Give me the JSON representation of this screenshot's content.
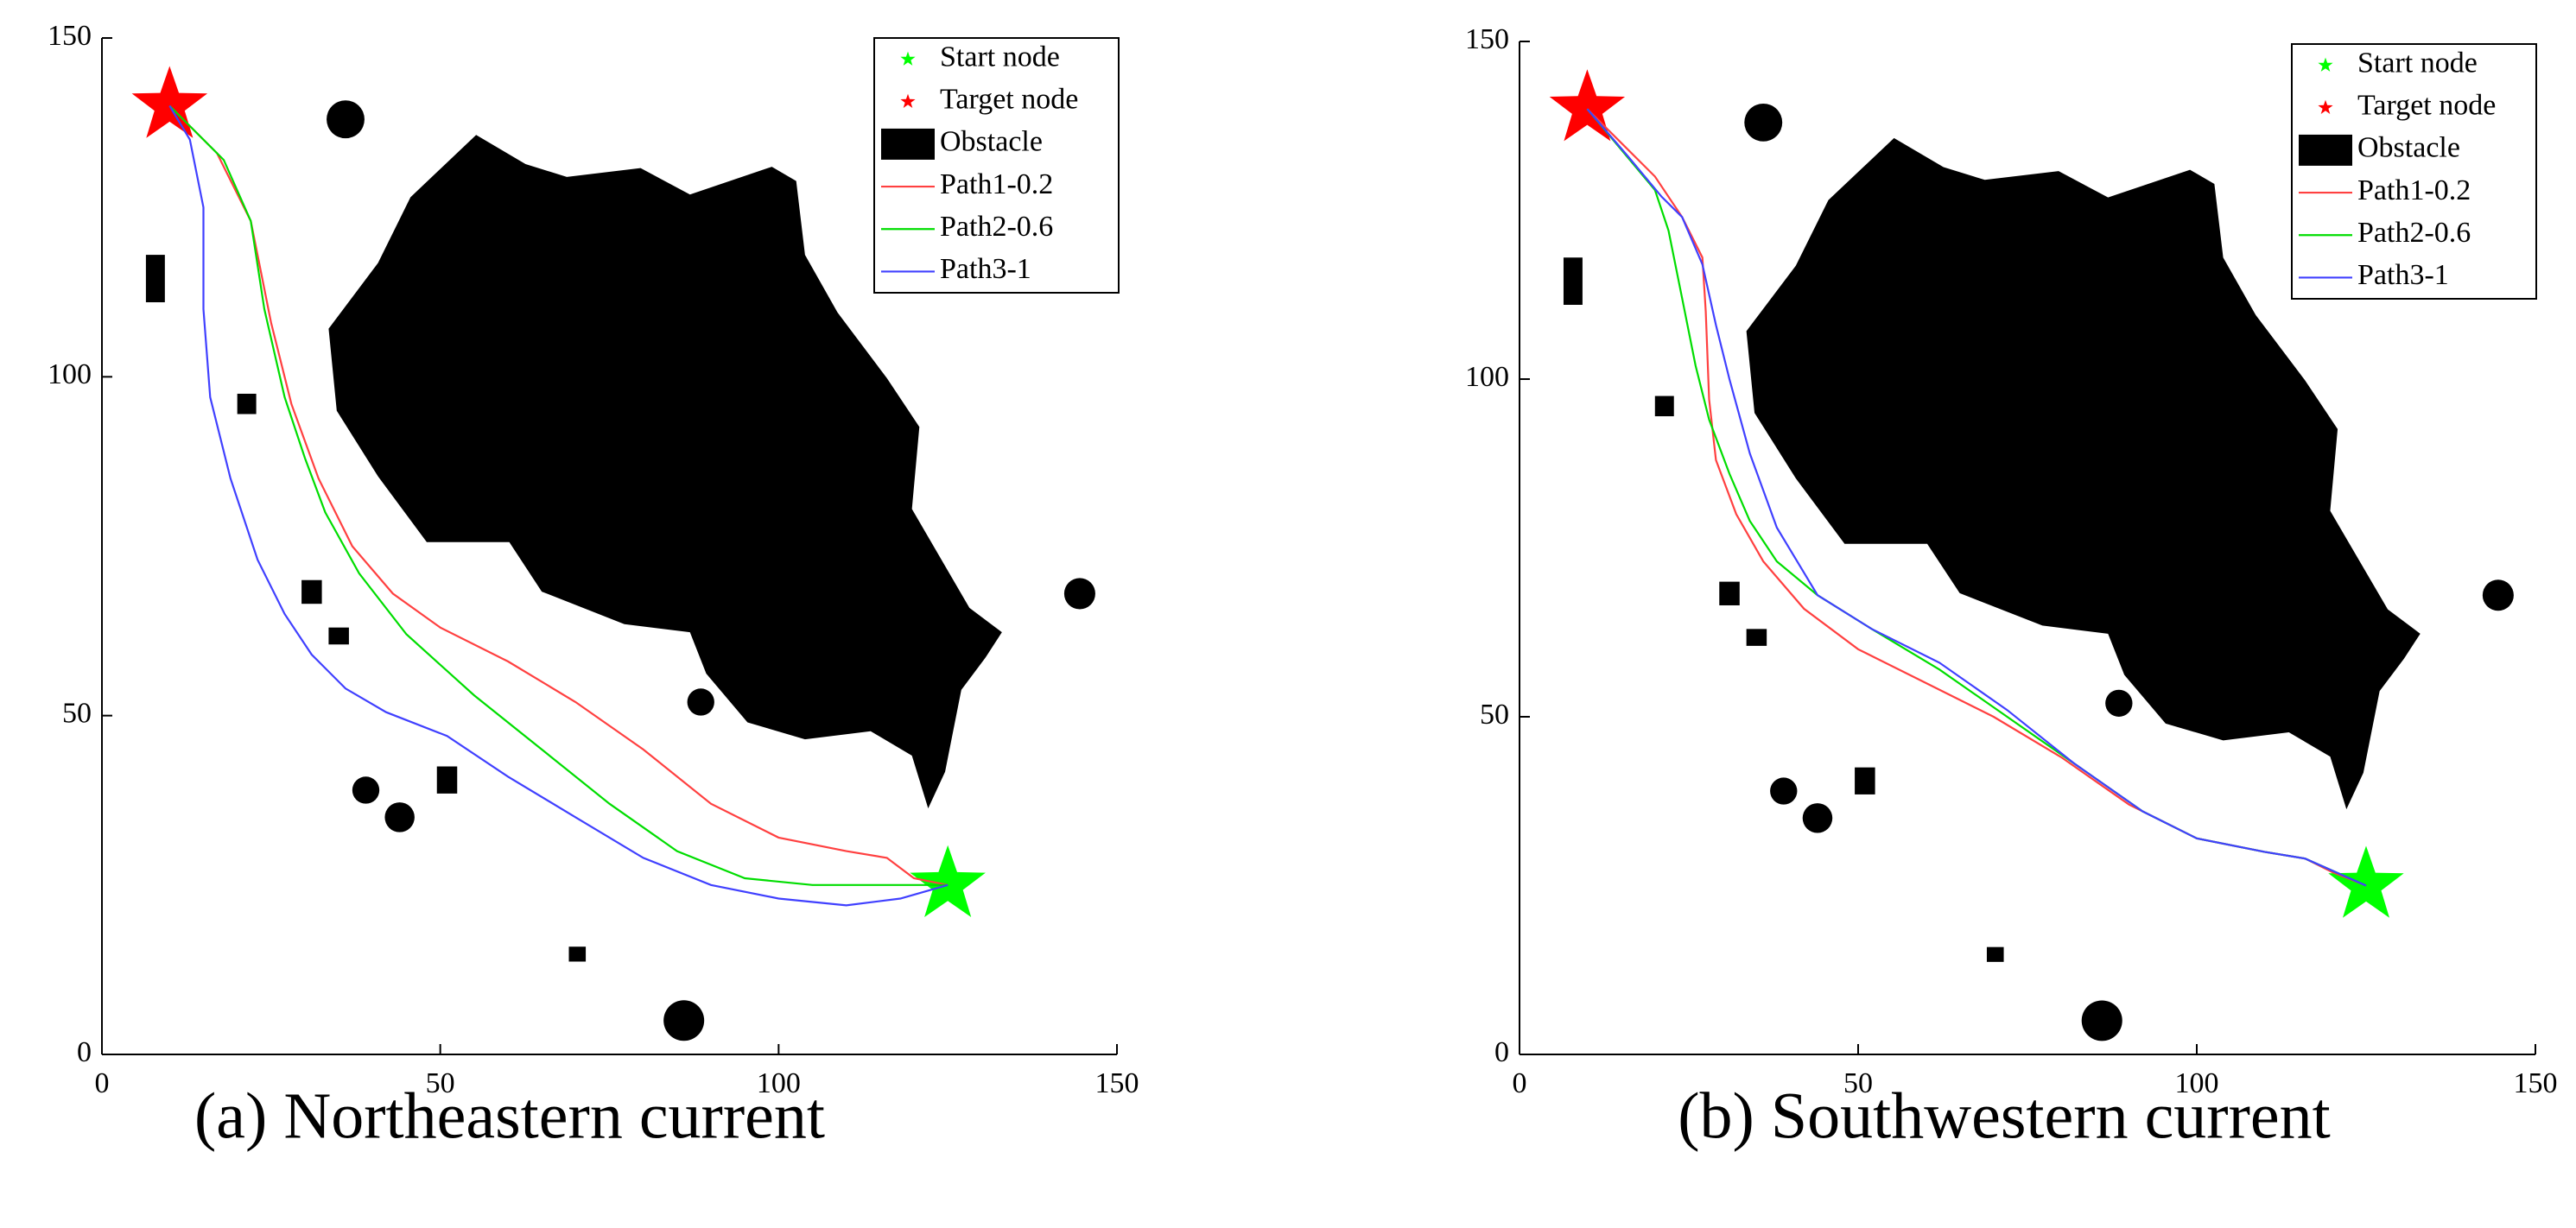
{
  "chart_data": [
    {
      "type": "line",
      "caption": "(a) Northeastern current",
      "xlim": [
        0,
        150
      ],
      "ylim": [
        0,
        150
      ],
      "xticks": [
        0,
        50,
        100,
        150
      ],
      "yticks": [
        0,
        50,
        100,
        150
      ],
      "legend_position": "upper right",
      "obstacle": {
        "name": "Obstacle",
        "color": "#000000"
      },
      "series": [
        {
          "name": "Start node",
          "color": "#00ff00",
          "marker": "star",
          "x": [
            125
          ],
          "values": [
            25
          ]
        },
        {
          "name": "Target node",
          "color": "#ff0000",
          "marker": "star",
          "x": [
            10
          ],
          "values": [
            140
          ]
        },
        {
          "name": "Path1-0.2",
          "color": "#ff4040",
          "x": [
            10,
            13,
            17,
            22,
            25,
            28,
            32,
            37,
            43,
            50,
            60,
            70,
            80,
            90,
            100,
            110,
            116,
            120,
            125
          ],
          "values": [
            140,
            137,
            133,
            123,
            108,
            96,
            85,
            75,
            68,
            63,
            58,
            52,
            45,
            37,
            32,
            30,
            29,
            26,
            25
          ]
        },
        {
          "name": "Path2-0.6",
          "color": "#00dd00",
          "x": [
            10,
            13,
            18,
            22,
            24,
            27,
            30,
            33,
            38,
            45,
            55,
            65,
            75,
            85,
            95,
            105,
            115,
            125
          ],
          "values": [
            140,
            137,
            132,
            123,
            110,
            97,
            88,
            80,
            71,
            62,
            53,
            45,
            37,
            30,
            26,
            25,
            25,
            25
          ]
        },
        {
          "name": "Path3-1",
          "color": "#4040ff",
          "x": [
            10,
            13,
            15,
            15,
            16,
            19,
            23,
            27,
            31,
            36,
            42,
            51,
            60,
            70,
            80,
            90,
            100,
            110,
            118,
            125
          ],
          "values": [
            140,
            135,
            125,
            110,
            97,
            85,
            73,
            65,
            59,
            54,
            50.5,
            47,
            41,
            35,
            29,
            25,
            23,
            22,
            23,
            25
          ]
        }
      ]
    },
    {
      "type": "line",
      "caption": "(b) Southwestern current",
      "xlim": [
        0,
        150
      ],
      "ylim": [
        0,
        150
      ],
      "xticks": [
        0,
        50,
        100,
        150
      ],
      "yticks": [
        0,
        50,
        100,
        150
      ],
      "legend_position": "upper right",
      "obstacle": {
        "name": "Obstacle",
        "color": "#000000"
      },
      "series": [
        {
          "name": "Start node",
          "color": "#00ff00",
          "marker": "star",
          "x": [
            125
          ],
          "values": [
            25
          ]
        },
        {
          "name": "Target node",
          "color": "#ff0000",
          "marker": "star",
          "x": [
            10
          ],
          "values": [
            140
          ]
        },
        {
          "name": "Path1-0.2",
          "color": "#ff4040",
          "x": [
            10,
            15,
            20,
            24,
            27,
            27.5,
            28,
            29,
            32,
            36,
            42,
            50,
            60,
            70,
            80,
            90,
            100,
            110,
            116,
            120,
            125
          ],
          "values": [
            140,
            135,
            130,
            124,
            118,
            110,
            97,
            88,
            80,
            73,
            66,
            60,
            55,
            50,
            44,
            37,
            32,
            30,
            29,
            27,
            25
          ]
        },
        {
          "name": "Path2-0.6",
          "color": "#00dd00",
          "x": [
            10,
            15,
            20,
            22,
            24,
            26,
            28,
            31,
            34,
            38,
            44,
            52,
            62,
            72,
            82,
            92,
            100,
            110,
            116,
            125
          ],
          "values": [
            140,
            134,
            128,
            122,
            112,
            102,
            94,
            86,
            79,
            73,
            68,
            63,
            57,
            50,
            43,
            36,
            32,
            30,
            29,
            25
          ]
        },
        {
          "name": "Path3-1",
          "color": "#4040ff",
          "x": [
            10,
            16,
            21,
            24,
            27,
            29,
            31,
            34,
            38,
            44,
            52,
            62,
            72,
            82,
            92,
            100,
            110,
            116,
            125
          ],
          "values": [
            140,
            133,
            127,
            124,
            117,
            108,
            100,
            89,
            78,
            68,
            63,
            58,
            51,
            43,
            36,
            32,
            30,
            29,
            25
          ]
        }
      ]
    }
  ]
}
